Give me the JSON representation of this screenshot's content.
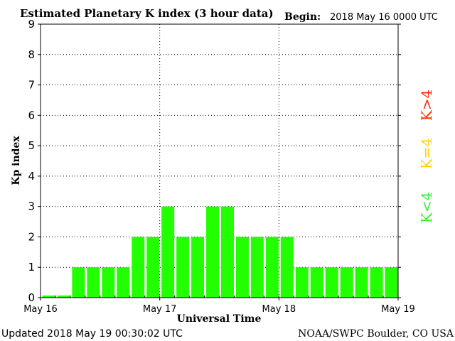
{
  "header": {
    "title": "Estimated Planetary K index (3 hour data)",
    "begin_label": "Begin:",
    "begin_value": "2018 May 16 0000 UTC"
  },
  "footer": {
    "updated": "Updated 2018 May 19 00:30:02 UTC",
    "source": "NOAA/SWPC Boulder, CO USA"
  },
  "side_legend": {
    "high": "K>4",
    "mid": "K=4",
    "low": "K<4",
    "colors": {
      "high": "#ff2a00",
      "mid": "#ffd400",
      "low": "#33ee33"
    }
  },
  "chart_data": {
    "type": "bar",
    "title": "Estimated Planetary K index (3 hour data)",
    "xlabel": "Universal Time",
    "ylabel": "Kp index",
    "ylim": [
      0,
      9
    ],
    "yticks": [
      "0",
      "1",
      "2",
      "3",
      "4",
      "5",
      "6",
      "7",
      "8",
      "9"
    ],
    "xticks": [
      "May 16",
      "May 17",
      "May 18",
      "May 19"
    ],
    "grid": "dotted",
    "bar_color": "#22ff00",
    "interval_hours": 3,
    "values": [
      0.07,
      0.07,
      1,
      1,
      1,
      1,
      2,
      2,
      3,
      2,
      2,
      3,
      3,
      2,
      2,
      2,
      2,
      1,
      1,
      1,
      1,
      1,
      1,
      1
    ]
  }
}
